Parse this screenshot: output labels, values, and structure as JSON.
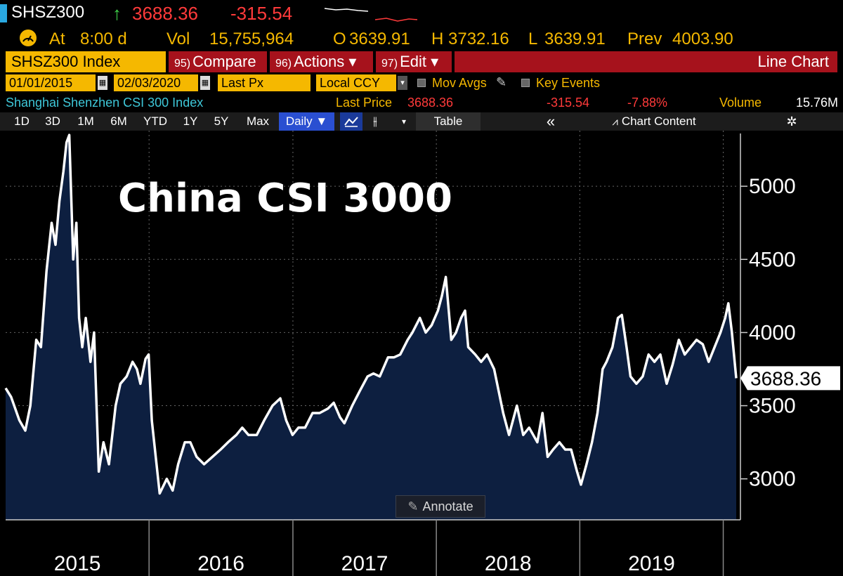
{
  "header": {
    "ticker": "SHSZ300",
    "arrow": "↑",
    "last": "3688.36",
    "change": "-315.54"
  },
  "quote": {
    "at_label": "At",
    "at_time": "8:00 d",
    "vol_label": "Vol",
    "vol_value": "15,755,964",
    "open_label": "O",
    "open_value": "3639.91",
    "high_label": "H",
    "high_value": "3732.16",
    "low_label": "L",
    "low_value": "3639.91",
    "prev_label": "Prev",
    "prev_value": "4003.90"
  },
  "toolbar": {
    "security": "SHSZ300 Index",
    "compare_num": "95)",
    "compare_label": "Compare",
    "actions_num": "96)",
    "actions_label": "Actions ▾",
    "edit_num": "97)",
    "edit_label": "Edit ▾",
    "chart_type": "Line Chart"
  },
  "settings": {
    "start_date": "01/01/2015",
    "end_date": "02/03/2020",
    "field": "Last Px",
    "currency": "Local CCY",
    "mov_avgs": "Mov Avgs",
    "key_events": "Key Events"
  },
  "info": {
    "name": "Shanghai Shenzhen CSI 300 Index",
    "last_price_label": "Last Price",
    "last_price": "3688.36",
    "net_change": "-315.54",
    "pct_change": "-7.88%",
    "volume_label": "Volume",
    "volume": "15.76M"
  },
  "range_bar": {
    "buttons": [
      "1D",
      "3D",
      "1M",
      "6M",
      "YTD",
      "1Y",
      "5Y",
      "Max"
    ],
    "frequency": "Daily ▼",
    "table": "Table",
    "collapse": "«",
    "chart_content": "Chart Content",
    "settings_icon": "gear-icon"
  },
  "annotate_label": "Annotate",
  "colors": {
    "amber": "#f5b800",
    "red_bar": "#a6121c",
    "area_fill": "#0d1f40",
    "line": "#ffffff"
  },
  "chart_data": {
    "type": "area",
    "title": "China CSI 3000",
    "xlabel": "",
    "ylabel": "",
    "x_ticks": [
      "2015",
      "2016",
      "2017",
      "2018",
      "2019"
    ],
    "y_ticks": [
      "3000",
      "3500",
      "4000",
      "4500",
      "5000"
    ],
    "ylim": [
      2720,
      5380
    ],
    "x_range": [
      "2015-01-01",
      "2020-02-03"
    ],
    "last_value_label": "3688.36",
    "grid": true,
    "series": [
      {
        "values": [
          [
            "2015-01-01",
            3620
          ],
          [
            "2015-01-15",
            3560
          ],
          [
            "2015-02-05",
            3400
          ],
          [
            "2015-02-20",
            3330
          ],
          [
            "2015-03-05",
            3500
          ],
          [
            "2015-03-20",
            3950
          ],
          [
            "2015-04-01",
            3900
          ],
          [
            "2015-04-15",
            4420
          ],
          [
            "2015-04-28",
            4750
          ],
          [
            "2015-05-08",
            4600
          ],
          [
            "2015-05-18",
            4900
          ],
          [
            "2015-05-28",
            5100
          ],
          [
            "2015-06-05",
            5300
          ],
          [
            "2015-06-12",
            5350
          ],
          [
            "2015-06-22",
            4500
          ],
          [
            "2015-06-30",
            4750
          ],
          [
            "2015-07-07",
            4100
          ],
          [
            "2015-07-15",
            3900
          ],
          [
            "2015-07-24",
            4100
          ],
          [
            "2015-08-05",
            3800
          ],
          [
            "2015-08-14",
            4000
          ],
          [
            "2015-08-26",
            3050
          ],
          [
            "2015-09-07",
            3250
          ],
          [
            "2015-09-21",
            3100
          ],
          [
            "2015-10-08",
            3500
          ],
          [
            "2015-10-20",
            3650
          ],
          [
            "2015-11-05",
            3700
          ],
          [
            "2015-11-20",
            3800
          ],
          [
            "2015-12-01",
            3750
          ],
          [
            "2015-12-10",
            3650
          ],
          [
            "2015-12-23",
            3820
          ],
          [
            "2015-12-31",
            3850
          ],
          [
            "2016-01-08",
            3400
          ],
          [
            "2016-01-18",
            3150
          ],
          [
            "2016-01-28",
            2900
          ],
          [
            "2016-02-15",
            3000
          ],
          [
            "2016-03-01",
            2920
          ],
          [
            "2016-03-15",
            3100
          ],
          [
            "2016-04-01",
            3250
          ],
          [
            "2016-04-15",
            3250
          ],
          [
            "2016-05-01",
            3150
          ],
          [
            "2016-05-20",
            3100
          ],
          [
            "2016-06-10",
            3150
          ],
          [
            "2016-07-01",
            3200
          ],
          [
            "2016-07-20",
            3250
          ],
          [
            "2016-08-10",
            3300
          ],
          [
            "2016-08-25",
            3350
          ],
          [
            "2016-09-10",
            3300
          ],
          [
            "2016-10-01",
            3300
          ],
          [
            "2016-10-20",
            3400
          ],
          [
            "2016-11-10",
            3500
          ],
          [
            "2016-11-30",
            3550
          ],
          [
            "2016-12-15",
            3400
          ],
          [
            "2016-12-31",
            3300
          ],
          [
            "2017-01-15",
            3350
          ],
          [
            "2017-02-01",
            3350
          ],
          [
            "2017-02-20",
            3450
          ],
          [
            "2017-03-10",
            3450
          ],
          [
            "2017-03-31",
            3480
          ],
          [
            "2017-04-15",
            3520
          ],
          [
            "2017-05-01",
            3420
          ],
          [
            "2017-05-12",
            3380
          ],
          [
            "2017-06-01",
            3500
          ],
          [
            "2017-06-20",
            3600
          ],
          [
            "2017-07-10",
            3700
          ],
          [
            "2017-07-25",
            3720
          ],
          [
            "2017-08-10",
            3700
          ],
          [
            "2017-08-31",
            3830
          ],
          [
            "2017-09-15",
            3830
          ],
          [
            "2017-10-01",
            3850
          ],
          [
            "2017-10-20",
            3950
          ],
          [
            "2017-11-01",
            4000
          ],
          [
            "2017-11-20",
            4100
          ],
          [
            "2017-12-05",
            4000
          ],
          [
            "2017-12-20",
            4050
          ],
          [
            "2018-01-05",
            4150
          ],
          [
            "2018-01-15",
            4250
          ],
          [
            "2018-01-25",
            4380
          ],
          [
            "2018-02-08",
            3950
          ],
          [
            "2018-02-20",
            4000
          ],
          [
            "2018-03-05",
            4100
          ],
          [
            "2018-03-15",
            4150
          ],
          [
            "2018-03-23",
            3900
          ],
          [
            "2018-04-10",
            3850
          ],
          [
            "2018-04-25",
            3800
          ],
          [
            "2018-05-10",
            3850
          ],
          [
            "2018-05-28",
            3750
          ],
          [
            "2018-06-20",
            3450
          ],
          [
            "2018-07-05",
            3300
          ],
          [
            "2018-07-25",
            3500
          ],
          [
            "2018-08-10",
            3300
          ],
          [
            "2018-08-25",
            3350
          ],
          [
            "2018-09-15",
            3250
          ],
          [
            "2018-09-28",
            3450
          ],
          [
            "2018-10-11",
            3150
          ],
          [
            "2018-10-25",
            3200
          ],
          [
            "2018-11-10",
            3250
          ],
          [
            "2018-11-25",
            3200
          ],
          [
            "2018-12-10",
            3200
          ],
          [
            "2018-12-25",
            3050
          ],
          [
            "2019-01-04",
            2960
          ],
          [
            "2019-01-18",
            3100
          ],
          [
            "2019-02-01",
            3250
          ],
          [
            "2019-02-15",
            3450
          ],
          [
            "2019-02-28",
            3750
          ],
          [
            "2019-03-10",
            3800
          ],
          [
            "2019-03-25",
            3900
          ],
          [
            "2019-04-08",
            4100
          ],
          [
            "2019-04-18",
            4120
          ],
          [
            "2019-04-30",
            3900
          ],
          [
            "2019-05-10",
            3700
          ],
          [
            "2019-05-25",
            3650
          ],
          [
            "2019-06-10",
            3700
          ],
          [
            "2019-06-25",
            3850
          ],
          [
            "2019-07-10",
            3800
          ],
          [
            "2019-07-25",
            3850
          ],
          [
            "2019-08-10",
            3650
          ],
          [
            "2019-08-25",
            3780
          ],
          [
            "2019-09-10",
            3950
          ],
          [
            "2019-09-25",
            3850
          ],
          [
            "2019-10-10",
            3900
          ],
          [
            "2019-10-25",
            3950
          ],
          [
            "2019-11-10",
            3920
          ],
          [
            "2019-11-25",
            3800
          ],
          [
            "2019-12-10",
            3900
          ],
          [
            "2019-12-25",
            4000
          ],
          [
            "2020-01-06",
            4100
          ],
          [
            "2020-01-14",
            4200
          ],
          [
            "2020-01-23",
            4003
          ],
          [
            "2020-02-03",
            3688
          ]
        ]
      }
    ]
  }
}
